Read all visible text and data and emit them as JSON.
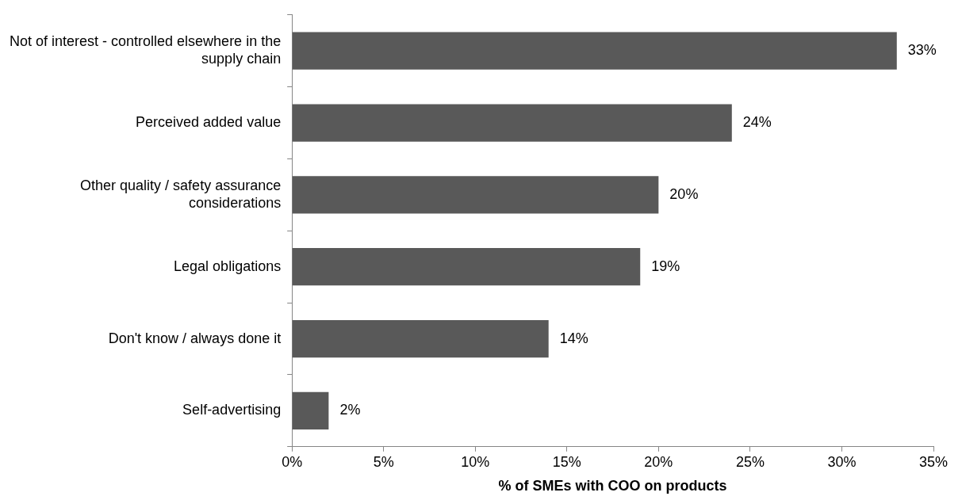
{
  "chart_data": {
    "type": "bar",
    "orientation": "horizontal",
    "xlabel": "% of SMEs with COO on products",
    "categories": [
      "Not of interest - controlled elsewhere in the supply chain",
      "Perceived added value",
      "Other quality / safety assurance considerations",
      "Legal obligations",
      "Don't know / always done it",
      "Self-advertising"
    ],
    "values": [
      33,
      24,
      20,
      19,
      14,
      2
    ],
    "value_labels": [
      "33%",
      "24%",
      "20%",
      "19%",
      "14%",
      "2%"
    ],
    "color": "#595959",
    "xlim": [
      0,
      35
    ],
    "xticks": [
      {
        "value": 0,
        "label": "0%"
      },
      {
        "value": 5,
        "label": "5%"
      },
      {
        "value": 10,
        "label": "10%"
      },
      {
        "value": 15,
        "label": "15%"
      },
      {
        "value": 20,
        "label": "20%"
      },
      {
        "value": 25,
        "label": "25%"
      },
      {
        "value": 30,
        "label": "30%"
      },
      {
        "value": 35,
        "label": "35%"
      }
    ],
    "grid": false,
    "legend": false
  }
}
